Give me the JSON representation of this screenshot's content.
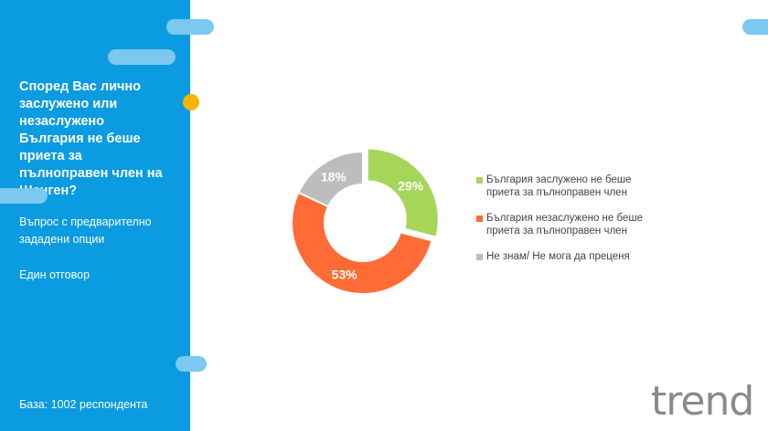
{
  "sidebar": {
    "question": "Според Вас лично заслужено или незаслужено България не беше приета за пълноправен член на Шенген?",
    "type": "Въпрос с предварително зададени опции",
    "answer_mode": "Един отговор",
    "base": "База: 1002 респондента"
  },
  "logo": "trend",
  "chart_data": {
    "type": "pie",
    "donut": true,
    "categories": [
      "България заслужено не беше приета за пълноправен член",
      "България незаслужено не беше приета за пълноправен член",
      "Не знам/ Не мога да преценя"
    ],
    "values": [
      29,
      53,
      18
    ],
    "labels": [
      "29%",
      "53%",
      "18%"
    ],
    "colors": [
      "#a5d65a",
      "#ff6b35",
      "#bdbdbd"
    ],
    "legend": "right"
  }
}
